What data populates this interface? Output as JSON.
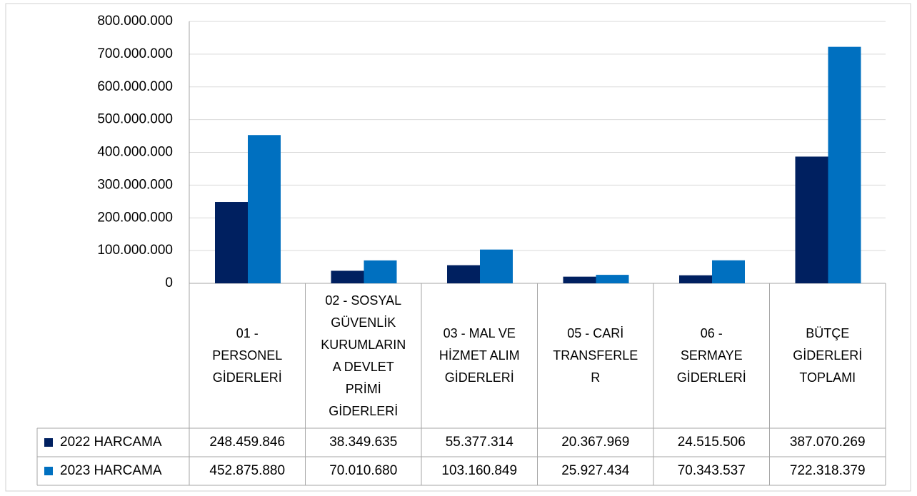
{
  "chart_data": {
    "type": "bar",
    "categories": [
      "01 - PERSONEL GİDERLERİ",
      "02 - SOSYAL GÜVENLİK KURUMLARINA DEVLET PRİMİ GİDERLERİ",
      "03 - MAL VE HİZMET ALIM GİDERLERİ",
      "05 - CARİ TRANSFERLER",
      "06 - SERMAYE GİDERLERİ",
      "BÜTÇE GİDERLERİ TOPLAMI"
    ],
    "series": [
      {
        "name": "2022 HARCAMA",
        "color": "#002060",
        "values": [
          248459846,
          38349635,
          55377314,
          20367969,
          24515506,
          387070269
        ],
        "value_labels": [
          "248.459.846",
          "38.349.635",
          "55.377.314",
          "20.367.969",
          "24.515.506",
          "387.070.269"
        ]
      },
      {
        "name": "2023 HARCAMA",
        "color": "#0070c0",
        "values": [
          452875880,
          70010680,
          103160849,
          25927434,
          70343537,
          722318379
        ],
        "value_labels": [
          "452.875.880",
          "70.010.680",
          "103.160.849",
          "25.927.434",
          "70.343.537",
          "722.318.379"
        ]
      }
    ],
    "ylim": [
      0,
      800000000
    ],
    "yticks": [
      0,
      {
        "value": 100000000,
        "label": "100.000.000"
      },
      {
        "value": 200000000,
        "label": "200.000.000"
      },
      {
        "value": 300000000,
        "label": "300.000.000"
      },
      {
        "value": 400000000,
        "label": "400.000.000"
      },
      {
        "value": 500000000,
        "label": "500.000.000"
      },
      {
        "value": 600000000,
        "label": "600.000.000"
      },
      {
        "value": 700000000,
        "label": "700.000.000"
      },
      {
        "value": 800000000,
        "label": "800.000.000"
      }
    ],
    "grid": true
  }
}
